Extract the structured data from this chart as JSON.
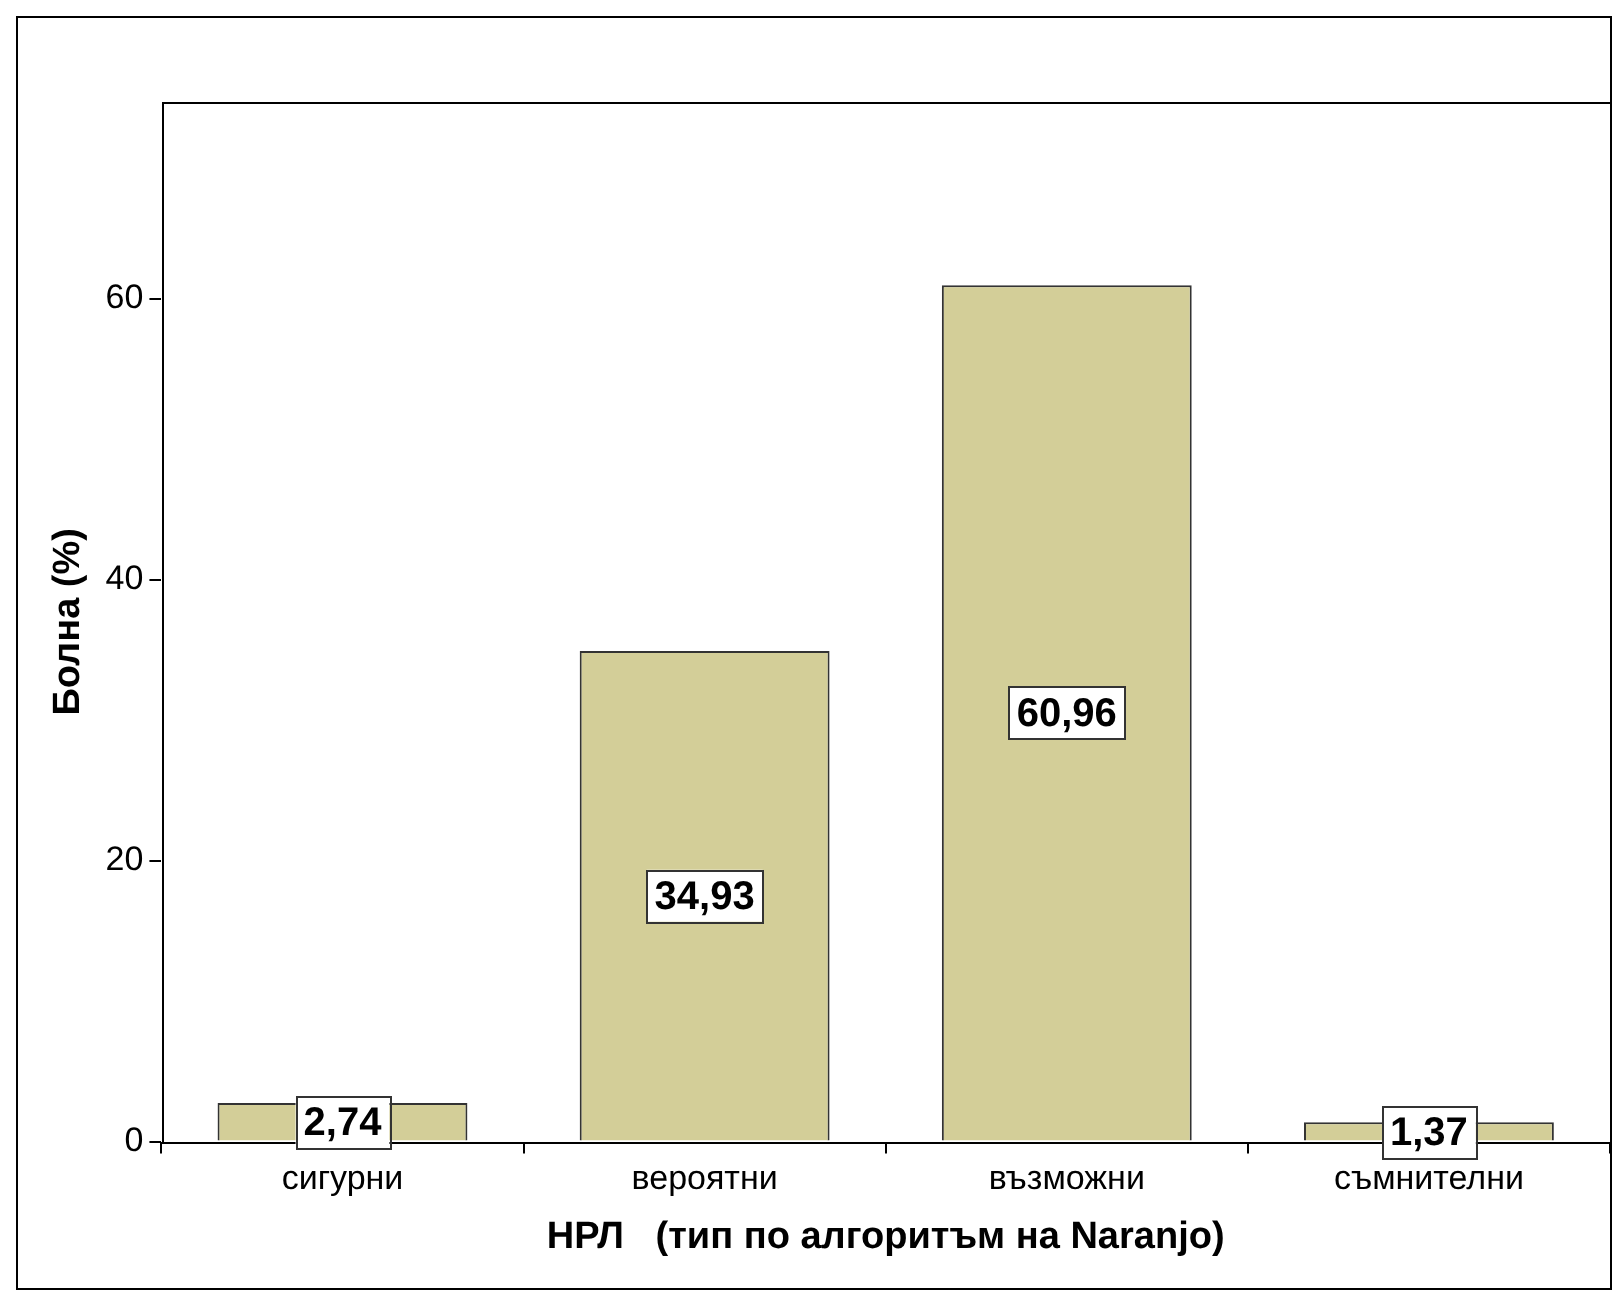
{
  "chart_data": {
    "type": "bar",
    "xlabel": "НРЛ   (тип по алгоритъм на Naranjo)",
    "ylabel": "Болна (%)",
    "categories": [
      "сигурни",
      "вероятни",
      "възможни",
      "съмнителни"
    ],
    "values": [
      2.74,
      34.93,
      60.96,
      1.37
    ],
    "value_labels": [
      "2,74",
      "34,93",
      "60,96",
      "1,37"
    ],
    "color": "#d3ce98",
    "ylim": [
      0,
      74
    ],
    "yticks": [
      0,
      20,
      40,
      60
    ],
    "grid": false,
    "legend": false
  }
}
